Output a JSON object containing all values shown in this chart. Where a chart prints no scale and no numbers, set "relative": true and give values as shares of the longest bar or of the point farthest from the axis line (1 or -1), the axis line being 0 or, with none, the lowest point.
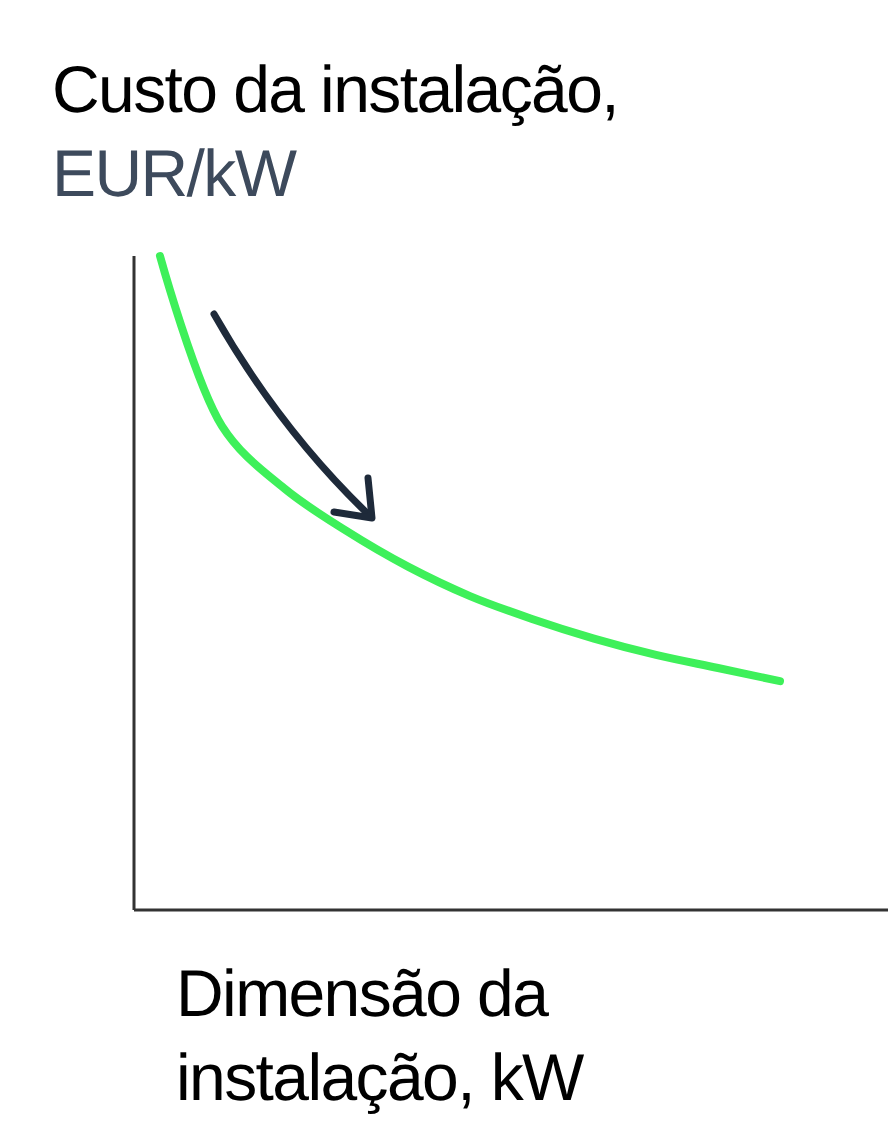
{
  "chart_data": {
    "type": "line",
    "relative": true,
    "ylabel": "Custo da instalação, EUR/kW",
    "xlabel": "Dimensão da instalação, kW",
    "categories": [
      null,
      null,
      null,
      null,
      null,
      null,
      null,
      null,
      null,
      null,
      null
    ],
    "series": [
      {
        "color": "#3ef05a",
        "values": [
          1,
          0.74,
          0.645,
          0.58,
          0.525,
          0.48,
          0.445,
          0.415,
          0.39,
          0.37,
          0.35
        ]
      }
    ],
    "marker": "none",
    "line_style": "solid"
  }
}
